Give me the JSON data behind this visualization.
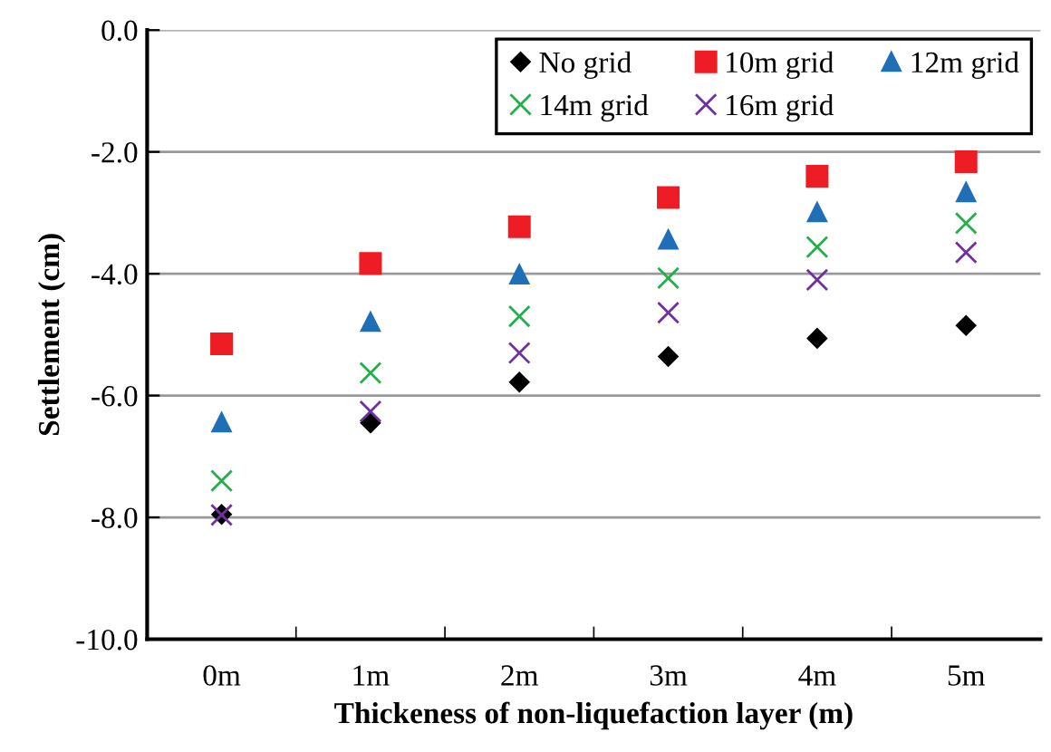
{
  "chart_data": {
    "type": "scatter",
    "xlabel": "Thickeness of non-liquefaction layer (m)",
    "ylabel": "Settlement (cm)",
    "categories": [
      "0m",
      "1m",
      "2m",
      "3m",
      "4m",
      "5m"
    ],
    "series": [
      {
        "name": "No grid",
        "color": "#000000",
        "marker": "diamond",
        "values": [
          -7.95,
          -6.45,
          -5.78,
          -5.36,
          -5.06,
          -4.85
        ]
      },
      {
        "name": "10m grid",
        "color": "#ee1c24",
        "marker": "square",
        "values": [
          -5.15,
          -3.83,
          -3.23,
          -2.75,
          -2.4,
          -2.16
        ]
      },
      {
        "name": "12m grid",
        "color": "#1f6fb7",
        "marker": "triangle",
        "values": [
          -6.44,
          -4.79,
          -4.01,
          -3.44,
          -2.99,
          -2.66
        ]
      },
      {
        "name": "14m grid",
        "color": "#22b04b",
        "marker": "cross",
        "values": [
          -7.4,
          -5.63,
          -4.7,
          -4.07,
          -3.56,
          -3.17
        ]
      },
      {
        "name": "16m grid",
        "color": "#7030a0",
        "marker": "cross",
        "values": [
          -7.96,
          -6.26,
          -5.3,
          -4.64,
          -4.1,
          -3.65
        ]
      }
    ],
    "ylim": [
      -10,
      0
    ],
    "yticks": [
      {
        "value": -10,
        "label": "-10.0"
      },
      {
        "value": -8,
        "label": "-8.0"
      },
      {
        "value": -6,
        "label": "-6.0"
      },
      {
        "value": -4,
        "label": "-4.0"
      },
      {
        "value": -2,
        "label": "-2.0"
      },
      {
        "value": 0,
        "label": "0.0"
      }
    ],
    "grid": "y",
    "legend": "top right"
  }
}
